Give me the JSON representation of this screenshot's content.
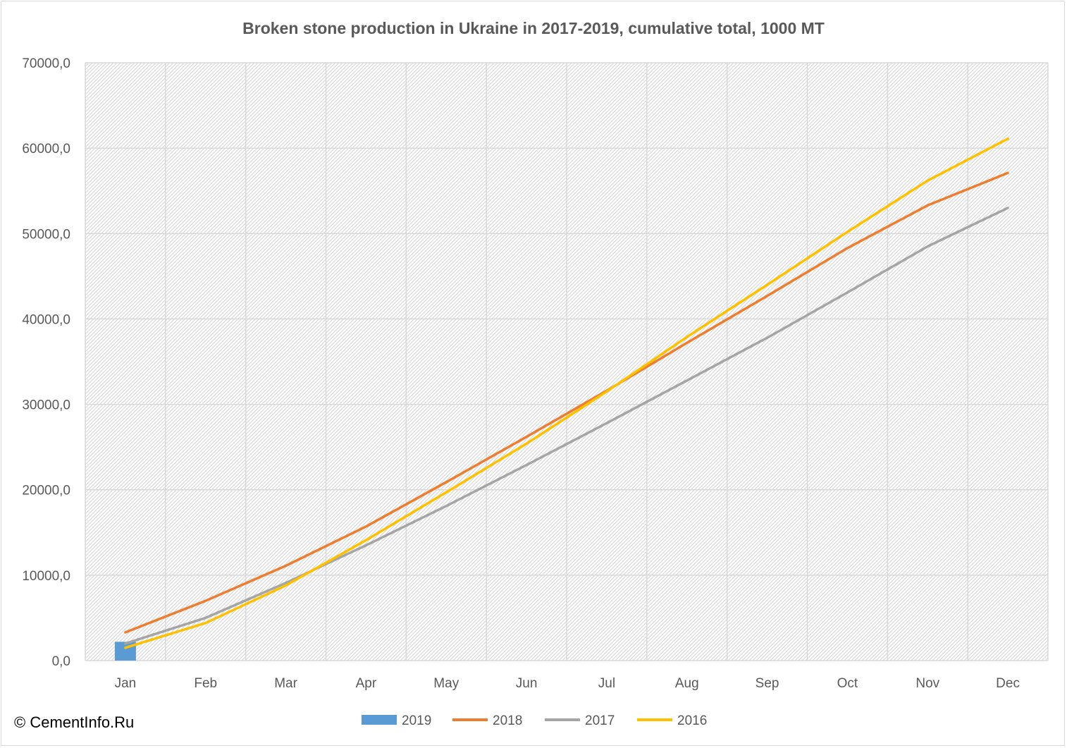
{
  "chart_data": {
    "type": "line",
    "title": "Broken stone production in Ukraine in 2017-2019, cumulative total, 1000 MT",
    "xlabel": "",
    "ylabel": "",
    "categories": [
      "Jan",
      "Feb",
      "Mar",
      "Apr",
      "May",
      "Jun",
      "Jul",
      "Aug",
      "Sep",
      "Oct",
      "Nov",
      "Dec"
    ],
    "ylim": [
      0,
      70000
    ],
    "yticks": [
      "0,0",
      "10000,0",
      "20000,0",
      "30000,0",
      "40000,0",
      "50000,0",
      "60000,0",
      "70000,0"
    ],
    "grid": true,
    "legend_position": "bottom",
    "series": [
      {
        "name": "2019",
        "kind": "bar",
        "color": "#5b9bd5",
        "values": [
          2200,
          null,
          null,
          null,
          null,
          null,
          null,
          null,
          null,
          null,
          null,
          null
        ]
      },
      {
        "name": "2018",
        "kind": "line",
        "color": "#ed7d31",
        "values": [
          3300,
          7000,
          11100,
          15700,
          20900,
          26200,
          31600,
          37200,
          42700,
          48300,
          53300,
          57100
        ]
      },
      {
        "name": "2017",
        "kind": "line",
        "color": "#a5a5a5",
        "values": [
          2000,
          5000,
          9100,
          13500,
          18100,
          22900,
          27800,
          32800,
          37800,
          43100,
          48500,
          53000
        ]
      },
      {
        "name": "2016",
        "kind": "line",
        "color": "#ffc000",
        "values": [
          1500,
          4400,
          8800,
          14100,
          19700,
          25400,
          31500,
          37900,
          44000,
          50200,
          56200,
          61100
        ]
      }
    ]
  },
  "footer": {
    "copyright": "© CementInfo.Ru"
  }
}
